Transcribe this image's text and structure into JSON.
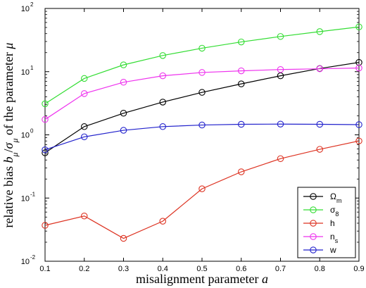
{
  "chart_data": {
    "type": "line",
    "title": "",
    "xlabel": "misalignment parameter a",
    "ylabel": "relative bias b_μ/σ_μ of the parameter μ",
    "xlim": [
      0.1,
      0.9
    ],
    "ylim": [
      0.01,
      100
    ],
    "y_scale": "log",
    "grid": false,
    "legend_position": "bottom-right",
    "x_ticks": [
      "0.1",
      "0.2",
      "0.3",
      "0.4",
      "0.5",
      "0.6",
      "0.7",
      "0.8",
      "0.9"
    ],
    "y_ticks": [
      {
        "value": 0.01,
        "base": "10",
        "exp": "-2"
      },
      {
        "value": 0.1,
        "base": "10",
        "exp": "-1"
      },
      {
        "value": 1,
        "base": "10",
        "exp": "0"
      },
      {
        "value": 10,
        "base": "10",
        "exp": "1"
      },
      {
        "value": 100,
        "base": "10",
        "exp": "2"
      }
    ],
    "x": [
      0.1,
      0.2,
      0.3,
      0.4,
      0.5,
      0.6,
      0.7,
      0.8,
      0.9
    ],
    "series": [
      {
        "name": "Ω",
        "sub": "m",
        "color": "#000000",
        "values": [
          0.52,
          1.35,
          2.2,
          3.3,
          4.7,
          6.4,
          8.6,
          11.2,
          14.0
        ]
      },
      {
        "name": "σ",
        "sub": "8",
        "color": "#33dd33",
        "values": [
          3.1,
          7.8,
          12.8,
          18.0,
          23.5,
          29.5,
          36.0,
          43.0,
          51.0
        ]
      },
      {
        "name": "h",
        "sub": "",
        "color": "#dd3322",
        "values": [
          0.037,
          0.052,
          0.023,
          0.043,
          0.14,
          0.26,
          0.42,
          0.59,
          0.8
        ]
      },
      {
        "name": "n",
        "sub": "s",
        "color": "#ee33ee",
        "values": [
          1.75,
          4.5,
          6.8,
          8.6,
          9.7,
          10.3,
          10.8,
          11.1,
          11.4
        ]
      },
      {
        "name": "w",
        "sub": "",
        "color": "#2222cc",
        "values": [
          0.58,
          0.93,
          1.18,
          1.35,
          1.43,
          1.47,
          1.48,
          1.47,
          1.45
        ]
      }
    ]
  }
}
